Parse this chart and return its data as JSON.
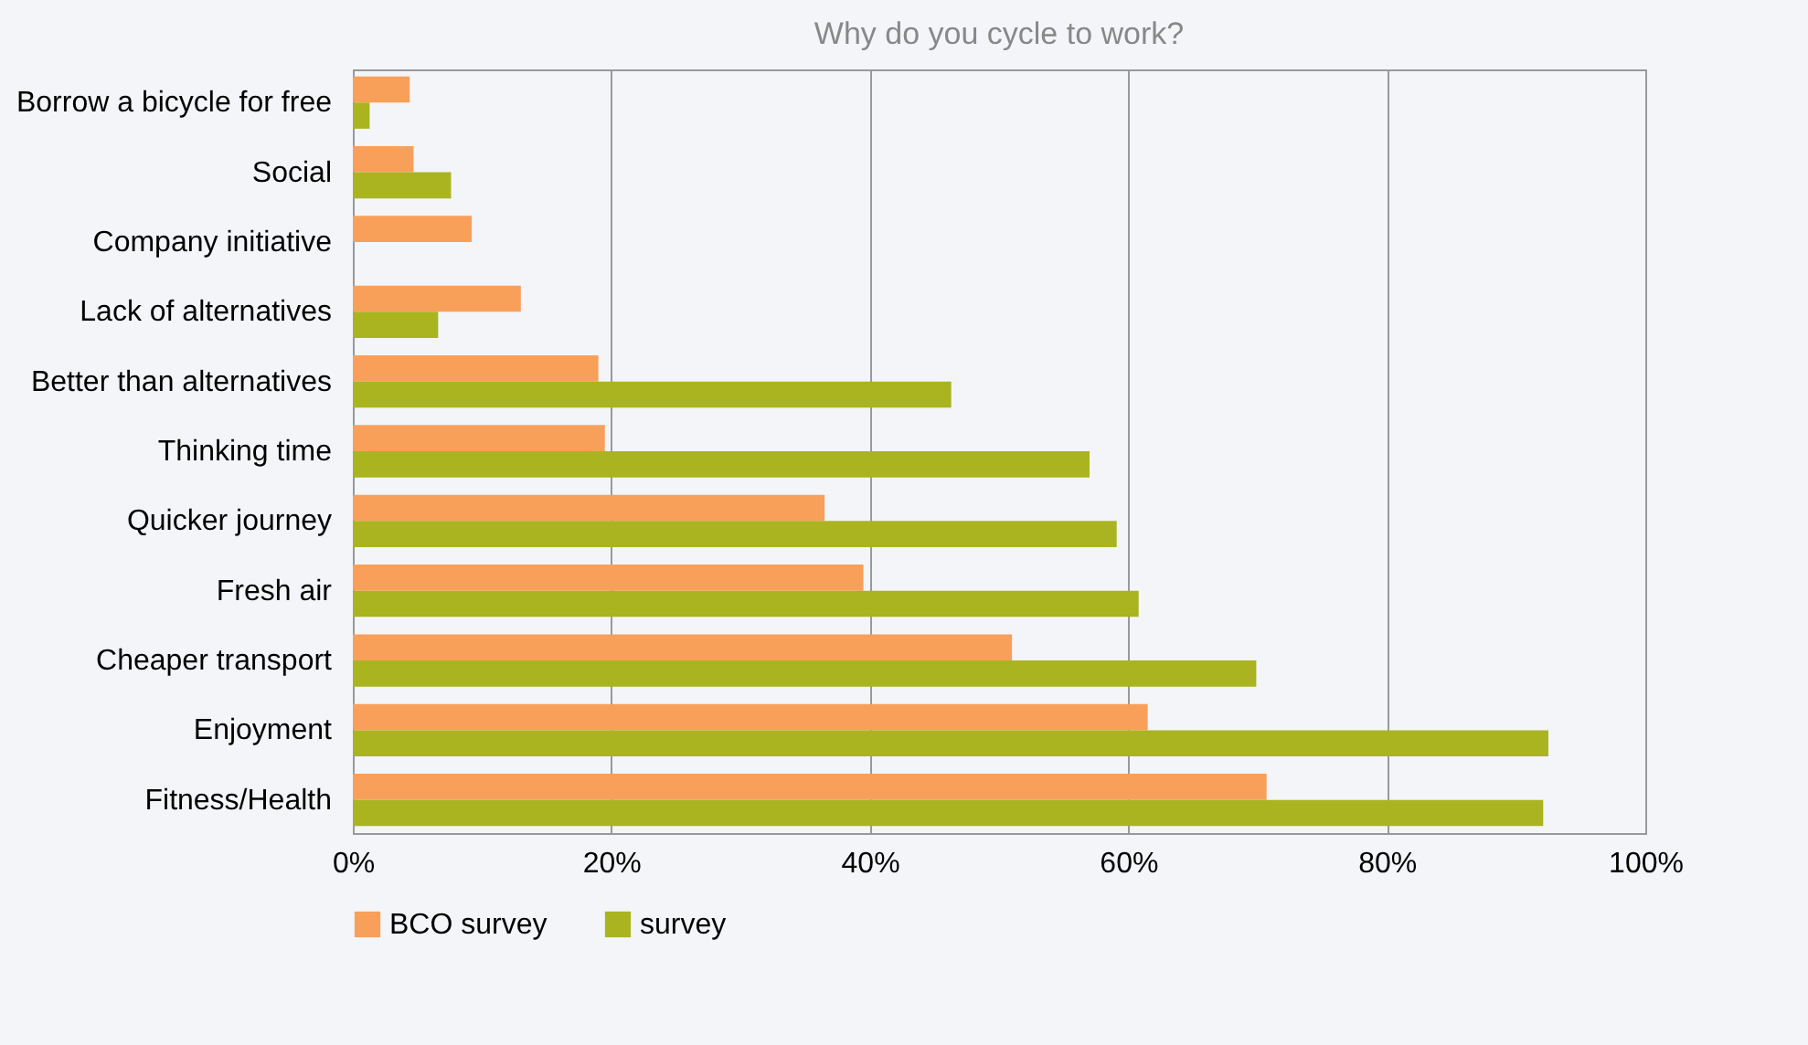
{
  "chart_data": {
    "type": "bar",
    "orientation": "horizontal",
    "title": "Why do you cycle to work?",
    "categories": [
      "Borrow a bicycle for free",
      "Social",
      "Company initiative",
      "Lack of alternatives",
      "Better than alternatives",
      "Thinking time",
      "Quicker journey",
      "Fresh air",
      "Cheaper transport",
      "Enjoyment",
      "Fitness/Health"
    ],
    "series": [
      {
        "name": "BCO survey",
        "color": "#f8a05a",
        "values": [
          4.4,
          4.7,
          9.2,
          13,
          19,
          19.5,
          36.5,
          39.5,
          51,
          61.5,
          70.7
        ]
      },
      {
        "name": "survey",
        "color": "#a9b420",
        "values": [
          1.3,
          7.6,
          null,
          6.6,
          46.3,
          57,
          59.1,
          60.8,
          69.9,
          92.5,
          92.1
        ]
      }
    ],
    "xlim": [
      0,
      100
    ],
    "xticks": [
      {
        "value": 0,
        "label": "0%"
      },
      {
        "value": 20,
        "label": "20%"
      },
      {
        "value": 40,
        "label": "40%"
      },
      {
        "value": 60,
        "label": "60%"
      },
      {
        "value": 80,
        "label": "80%"
      },
      {
        "value": 100,
        "label": "100%"
      }
    ],
    "grid": "x",
    "legend": "bottom"
  }
}
